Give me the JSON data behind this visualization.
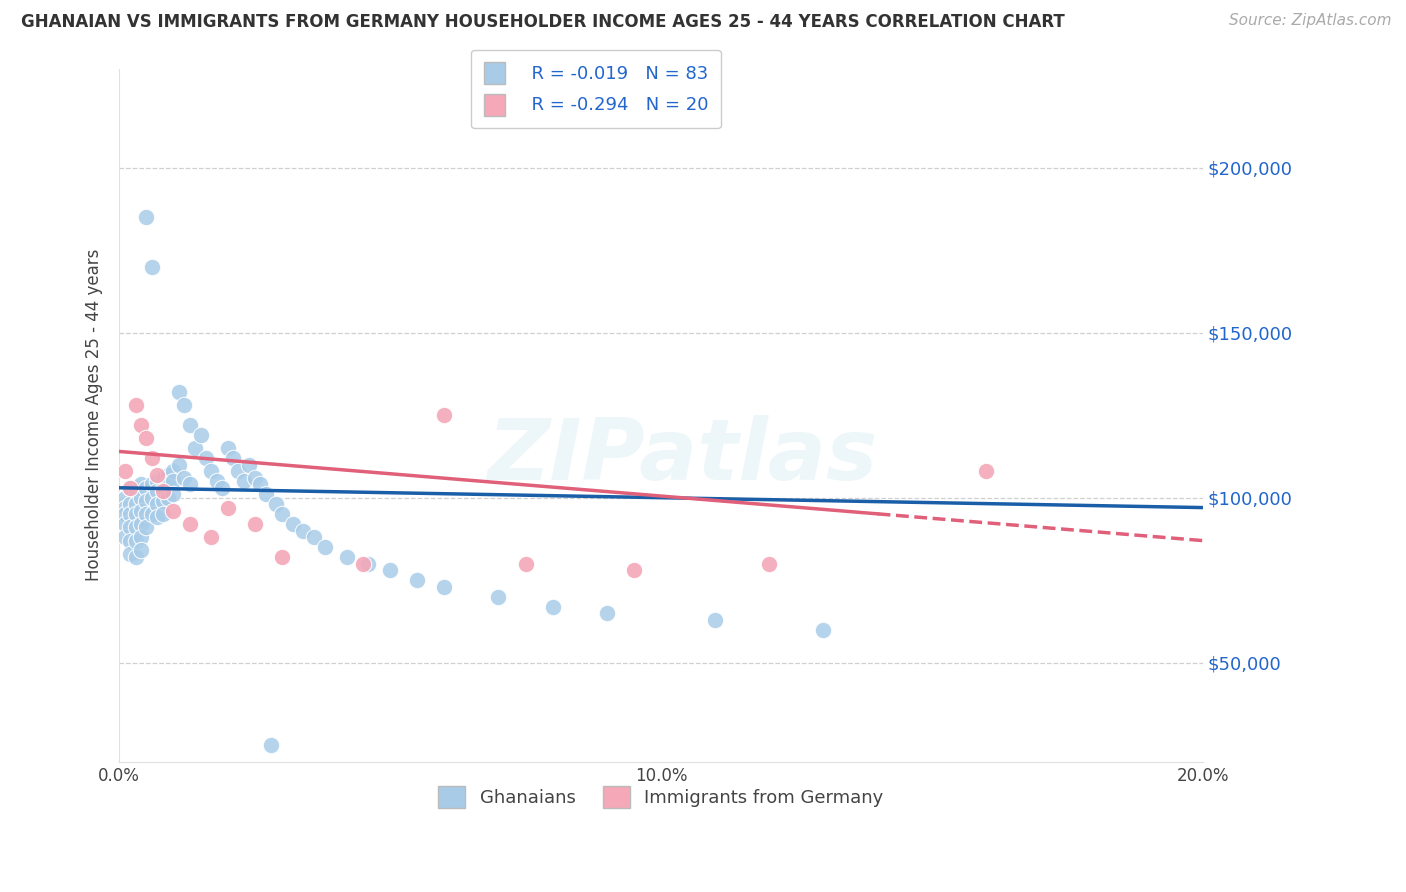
{
  "title": "GHANAIAN VS IMMIGRANTS FROM GERMANY HOUSEHOLDER INCOME AGES 25 - 44 YEARS CORRELATION CHART",
  "source": "Source: ZipAtlas.com",
  "ylabel": "Householder Income Ages 25 - 44 years",
  "xlim": [
    0.0,
    0.2
  ],
  "ylim": [
    20000,
    230000
  ],
  "yticks": [
    50000,
    100000,
    150000,
    200000
  ],
  "ytick_labels": [
    "$50,000",
    "$100,000",
    "$150,000",
    "$200,000"
  ],
  "xticks": [
    0.0,
    0.05,
    0.1,
    0.15,
    0.2
  ],
  "xtick_labels": [
    "0.0%",
    "",
    "10.0%",
    "",
    "20.0%"
  ],
  "ghanaian_R": -0.019,
  "ghanaian_N": 83,
  "germany_R": -0.294,
  "germany_N": 20,
  "ghanaian_color": "#a8cce8",
  "germany_color": "#f4a8b8",
  "trend_blue": "#1a5ea8",
  "trend_pink": "#e0607a",
  "watermark": "ZIPatlas",
  "legend_R1": "R = -0.019",
  "legend_N1": "N = 83",
  "legend_R2": "R = -0.294",
  "legend_N2": "N = 20",
  "label1": "Ghanaians",
  "label2": "Immigrants from Germany",
  "blue_trend_y0": 103000,
  "blue_trend_y1": 97000,
  "pink_trend_y0": 114000,
  "pink_trend_y1": 87000,
  "ghanaian_x": [
    0.001,
    0.001,
    0.001,
    0.001,
    0.001,
    0.002,
    0.002,
    0.002,
    0.002,
    0.002,
    0.002,
    0.003,
    0.003,
    0.003,
    0.003,
    0.003,
    0.003,
    0.004,
    0.004,
    0.004,
    0.004,
    0.004,
    0.004,
    0.005,
    0.005,
    0.005,
    0.005,
    0.005,
    0.006,
    0.006,
    0.006,
    0.006,
    0.007,
    0.007,
    0.007,
    0.007,
    0.008,
    0.008,
    0.008,
    0.008,
    0.009,
    0.009,
    0.009,
    0.01,
    0.01,
    0.01,
    0.011,
    0.011,
    0.012,
    0.012,
    0.013,
    0.013,
    0.014,
    0.015,
    0.016,
    0.017,
    0.018,
    0.019,
    0.02,
    0.021,
    0.022,
    0.023,
    0.024,
    0.025,
    0.026,
    0.027,
    0.028,
    0.029,
    0.03,
    0.032,
    0.034,
    0.036,
    0.038,
    0.042,
    0.046,
    0.05,
    0.055,
    0.06,
    0.07,
    0.08,
    0.09,
    0.11,
    0.13
  ],
  "ghanaian_y": [
    100000,
    97000,
    95000,
    92000,
    88000,
    103000,
    98000,
    95000,
    91000,
    87000,
    83000,
    102000,
    98000,
    95000,
    91000,
    87000,
    82000,
    104000,
    100000,
    96000,
    92000,
    88000,
    84000,
    185000,
    103000,
    99000,
    95000,
    91000,
    170000,
    104000,
    100000,
    95000,
    105000,
    102000,
    98000,
    94000,
    106000,
    103000,
    99000,
    95000,
    107000,
    104000,
    100000,
    108000,
    105000,
    101000,
    132000,
    110000,
    128000,
    106000,
    122000,
    104000,
    115000,
    119000,
    112000,
    108000,
    105000,
    103000,
    115000,
    112000,
    108000,
    105000,
    110000,
    106000,
    104000,
    101000,
    25000,
    98000,
    95000,
    92000,
    90000,
    88000,
    85000,
    82000,
    80000,
    78000,
    75000,
    73000,
    70000,
    67000,
    65000,
    63000,
    60000
  ],
  "germany_x": [
    0.001,
    0.002,
    0.003,
    0.004,
    0.005,
    0.006,
    0.007,
    0.008,
    0.01,
    0.013,
    0.017,
    0.02,
    0.025,
    0.03,
    0.045,
    0.06,
    0.075,
    0.095,
    0.12,
    0.16
  ],
  "germany_y": [
    108000,
    103000,
    128000,
    122000,
    118000,
    112000,
    107000,
    102000,
    96000,
    92000,
    88000,
    97000,
    92000,
    82000,
    80000,
    125000,
    80000,
    78000,
    80000,
    108000
  ]
}
